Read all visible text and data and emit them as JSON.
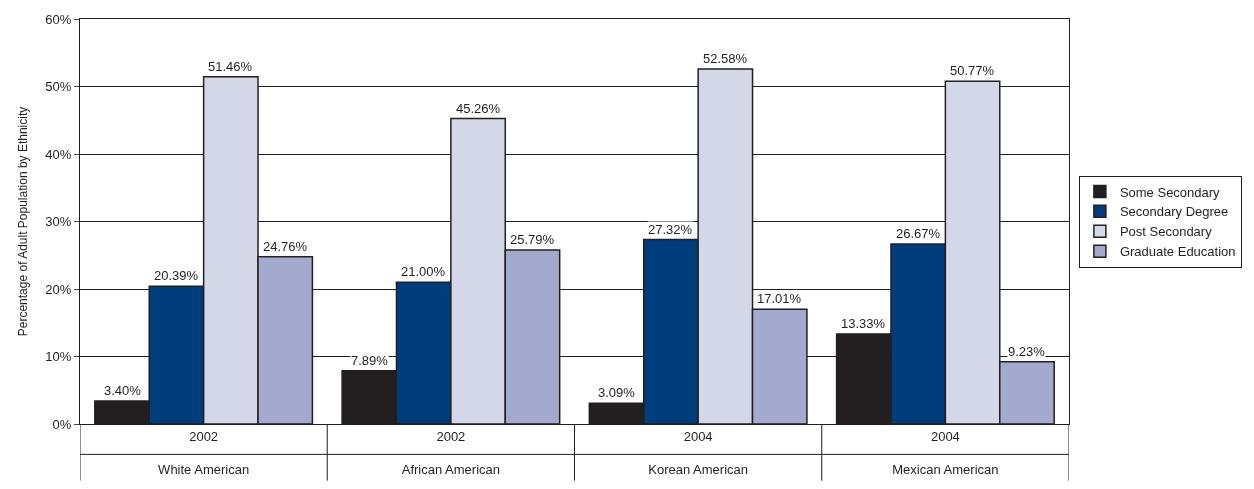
{
  "chart_data": {
    "type": "bar",
    "ylabel": "Percentage of Adult Population by Ethnicity",
    "categories": [
      "2002\nWhite American",
      "2002\nAfrican American",
      "2004\nKorean American",
      "2004\nMexican American"
    ],
    "series": [
      {
        "name": "Some Secondary",
        "color": "#231f20",
        "values": [
          3.4,
          7.89,
          3.09,
          13.33
        ],
        "value_labels": [
          "3.40%",
          "7.89%",
          "3.09%",
          "13.33%"
        ]
      },
      {
        "name": "Secondary Degree",
        "color": "#003d7c",
        "values": [
          20.39,
          21.0,
          27.32,
          26.67
        ],
        "value_labels": [
          "20.39%",
          "21.00%",
          "27.32%",
          "26.67%"
        ]
      },
      {
        "name": "Post Secondary",
        "color": "#d4d7e8",
        "values": [
          51.46,
          45.26,
          52.58,
          50.77
        ],
        "value_labels": [
          "51.46%",
          "45.26%",
          "52.58%",
          "50.77%"
        ]
      },
      {
        "name": "Graduate Education",
        "color": "#a3aacd",
        "values": [
          24.76,
          25.79,
          17.01,
          9.23
        ],
        "value_labels": [
          "24.76%",
          "25.79%",
          "17.01%",
          "9.23%"
        ]
      }
    ],
    "ylim": [
      0,
      60
    ],
    "yticks": [
      {
        "value": 0,
        "label": "0%"
      },
      {
        "value": 10,
        "label": "10%"
      },
      {
        "value": 20,
        "label": "20%"
      },
      {
        "value": 30,
        "label": "30%"
      },
      {
        "value": 40,
        "label": "40%"
      },
      {
        "value": 50,
        "label": "50%"
      },
      {
        "value": 60,
        "label": "60%"
      }
    ],
    "grid": "y",
    "legend": "right"
  }
}
